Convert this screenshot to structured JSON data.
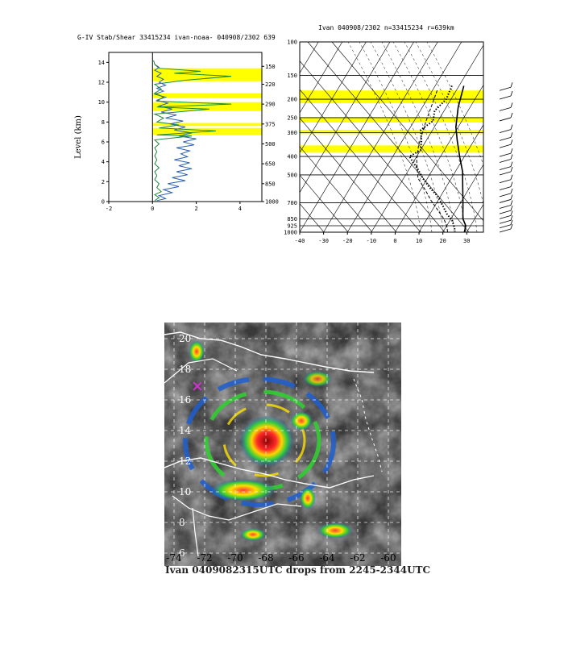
{
  "left_panel": {
    "title": "G-IV Stab/Shear 33415234 ivan-noaa- 040908/2302 639",
    "ylabel": "Level (km)"
  },
  "right_panel": {
    "title": "Ivan  040908/2302 n=33415234 r=639km"
  },
  "satellite": {
    "caption": "Ivan 0409082315UTC drops from 2245-2344UTC",
    "lat_labels": [
      "20",
      "18",
      "16",
      "14",
      "12",
      "10",
      "8",
      "6"
    ],
    "lon_labels": [
      "-74",
      "-72",
      "-70",
      "-68",
      "-66",
      "-64",
      "-62",
      "-60"
    ],
    "marker_color": "#cc33cc"
  },
  "chart_data": [
    {
      "type": "line",
      "title": "G-IV Stab/Shear 33415234 ivan-noaa- 040908/2302 639",
      "ylabel": "Level (km)",
      "xlabel": "",
      "xlim": [
        -2,
        5
      ],
      "ylim": [
        0,
        15
      ],
      "x_ticks": [
        "-2",
        "0",
        "2",
        "4"
      ],
      "y_ticks": [
        "0",
        "2",
        "4",
        "6",
        "8",
        "10",
        "12",
        "14"
      ],
      "right_axis_ticks": [
        "150",
        "220",
        "290",
        "375",
        "500",
        "650",
        "850",
        "1000"
      ],
      "right_axis_levels_km": [
        13.6,
        11.8,
        9.8,
        7.8,
        5.8,
        3.8,
        1.8,
        0
      ],
      "highlight_bands_km": [
        [
          12.1,
          13.4
        ],
        [
          10.4,
          10.9
        ],
        [
          9.1,
          10.0
        ],
        [
          7.6,
          7.9
        ],
        [
          6.9,
          7.4
        ],
        [
          6.7,
          6.9
        ]
      ],
      "series": [
        {
          "color": "#2a5fb0",
          "points": [
            [
              0.2,
              0.1
            ],
            [
              0.6,
              0.3
            ],
            [
              0.3,
              0.6
            ],
            [
              0.9,
              0.9
            ],
            [
              0.5,
              1.2
            ],
            [
              1.2,
              1.5
            ],
            [
              0.7,
              1.8
            ],
            [
              1.5,
              2.1
            ],
            [
              0.9,
              2.4
            ],
            [
              1.6,
              2.7
            ],
            [
              1.1,
              3.0
            ],
            [
              1.8,
              3.3
            ],
            [
              1.2,
              3.6
            ],
            [
              1.7,
              3.9
            ],
            [
              1.0,
              4.2
            ],
            [
              1.6,
              4.5
            ],
            [
              1.3,
              4.8
            ],
            [
              1.7,
              5.1
            ],
            [
              1.1,
              5.4
            ],
            [
              1.9,
              5.7
            ],
            [
              1.4,
              6.0
            ],
            [
              2.0,
              6.3
            ],
            [
              1.2,
              6.6
            ],
            [
              1.8,
              6.9
            ],
            [
              1.0,
              7.2
            ],
            [
              1.5,
              7.5
            ],
            [
              0.8,
              7.8
            ],
            [
              1.4,
              8.1
            ],
            [
              0.6,
              8.4
            ],
            [
              1.1,
              8.7
            ],
            [
              0.4,
              9.0
            ],
            [
              0.9,
              9.3
            ],
            [
              0.3,
              9.6
            ],
            [
              0.7,
              9.9
            ],
            [
              0.2,
              10.2
            ],
            [
              0.6,
              10.5
            ],
            [
              0.1,
              10.8
            ],
            [
              0.5,
              11.1
            ],
            [
              0.2,
              11.4
            ],
            [
              0.6,
              11.7
            ],
            [
              0.3,
              12.0
            ],
            [
              0.5,
              12.3
            ],
            [
              0.2,
              12.6
            ],
            [
              0.4,
              12.9
            ],
            [
              0.1,
              13.2
            ],
            [
              0.3,
              13.5
            ],
            [
              0.1,
              13.8
            ]
          ]
        },
        {
          "color": "#1d8a3a",
          "points": [
            [
              0.1,
              0.1
            ],
            [
              0.3,
              0.4
            ],
            [
              0.1,
              0.7
            ],
            [
              0.4,
              1.0
            ],
            [
              0.2,
              1.4
            ],
            [
              0.3,
              1.8
            ],
            [
              0.1,
              2.2
            ],
            [
              0.2,
              2.6
            ],
            [
              0.1,
              3.0
            ],
            [
              0.3,
              3.4
            ],
            [
              0.1,
              3.8
            ],
            [
              0.2,
              4.2
            ],
            [
              0.1,
              4.6
            ],
            [
              0.2,
              5.0
            ],
            [
              0.1,
              5.4
            ],
            [
              0.3,
              5.8
            ],
            [
              0.1,
              6.2
            ],
            [
              1.8,
              6.6
            ],
            [
              0.2,
              6.7
            ],
            [
              2.9,
              7.1
            ],
            [
              0.3,
              7.4
            ],
            [
              1.2,
              7.7
            ],
            [
              0.2,
              8.0
            ],
            [
              0.5,
              8.4
            ],
            [
              0.1,
              8.8
            ],
            [
              2.6,
              9.3
            ],
            [
              0.2,
              9.5
            ],
            [
              3.6,
              9.8
            ],
            [
              0.2,
              10.1
            ],
            [
              0.5,
              10.5
            ],
            [
              0.1,
              10.9
            ],
            [
              0.4,
              11.3
            ],
            [
              0.1,
              11.8
            ],
            [
              1.5,
              12.2
            ],
            [
              3.6,
              12.6
            ],
            [
              1.0,
              12.9
            ],
            [
              2.2,
              13.1
            ],
            [
              0.3,
              13.4
            ],
            [
              0.1,
              13.8
            ],
            [
              0.05,
              14.2
            ]
          ]
        }
      ]
    },
    {
      "type": "line",
      "title": "Ivan  040908/2302 n=33415234 r=639km",
      "xlabel": "",
      "ylabel": "",
      "xlim": [
        -40,
        37
      ],
      "ylim": [
        1000,
        100
      ],
      "x_ticks": [
        "-40",
        "-30",
        "-20",
        "-10",
        "0",
        "10",
        "20",
        "30"
      ],
      "pressure_levels": [
        100,
        150,
        200,
        250,
        300,
        400,
        500,
        700,
        850,
        925,
        1000
      ],
      "pressure_labels": [
        "100",
        "150",
        "200",
        "250",
        "300",
        "400",
        "500",
        "700",
        "850",
        "925",
        "1000"
      ],
      "highlight_bands_hpa": [
        [
          180,
          210
        ],
        [
          250,
          265
        ],
        [
          290,
          305
        ],
        [
          350,
          380
        ]
      ],
      "series": [
        {
          "name": "",
          "style": "solid",
          "points": [
            [
              -8,
              170
            ],
            [
              -5,
              220
            ],
            [
              -1,
              280
            ],
            [
              3,
              330
            ],
            [
              8,
              400
            ],
            [
              13,
              480
            ],
            [
              17,
              580
            ],
            [
              21,
              700
            ],
            [
              25,
              850
            ],
            [
              28,
              925
            ],
            [
              29,
              1000
            ]
          ]
        },
        {
          "name": "",
          "style": "dotted",
          "points": [
            [
              -13,
              170
            ],
            [
              -12,
              200
            ],
            [
              -14,
              230
            ],
            [
              -12,
              260
            ],
            [
              -15,
              290
            ],
            [
              -12,
              330
            ],
            [
              -10,
              370
            ],
            [
              -13,
              400
            ],
            [
              -10,
              430
            ],
            [
              -6,
              470
            ],
            [
              -2,
              520
            ],
            [
              3,
              580
            ],
            [
              9,
              650
            ],
            [
              13,
              720
            ],
            [
              17,
              800
            ],
            [
              21,
              870
            ],
            [
              23,
              925
            ],
            [
              25,
              990
            ]
          ]
        },
        {
          "name": "",
          "style": "dashed",
          "points": [
            [
              -18,
              180
            ],
            [
              -15,
              260
            ],
            [
              -12,
              350
            ],
            [
              -9,
              420
            ],
            [
              -4,
              520
            ],
            [
              2,
              600
            ],
            [
              7,
              680
            ],
            [
              12,
              760
            ],
            [
              17,
              850
            ],
            [
              20,
              925
            ],
            [
              22,
              1000
            ]
          ]
        }
      ],
      "wind_barb_levels_hpa": [
        180,
        200,
        230,
        260,
        300,
        330,
        360,
        400,
        430,
        470,
        500,
        550,
        600,
        650,
        700,
        750,
        800,
        850,
        900,
        950,
        1000
      ]
    }
  ]
}
